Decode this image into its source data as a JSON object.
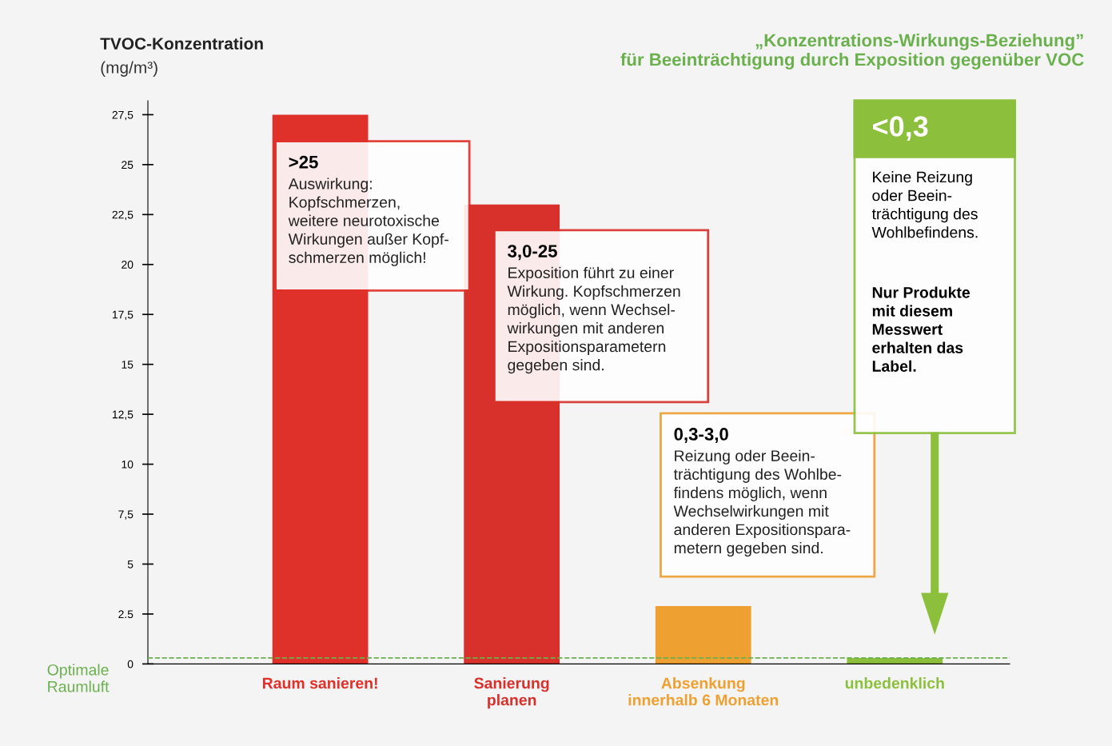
{
  "chart_data": {
    "type": "bar",
    "title": "„Konzentrations-Wirkungs-Beziehung”\nfür Beeinträchtigung durch Exposition gegenüber VOC",
    "ylabel": "TVOC-Konzentration\n(mg/m³)",
    "categories": [
      "Raum sanieren!",
      "Sanierung\nplanen",
      "Absenkung\ninnerhalb 6 Monaten",
      "unbedenklich"
    ],
    "values": [
      27.5,
      23.0,
      2.9,
      0.3
    ],
    "colors": [
      "#e0302a",
      "#d8302a",
      "#eea030",
      "#8cc03c"
    ],
    "ylim": [
      0,
      28.2
    ],
    "yticks": [
      0,
      {
        "value": 2.5,
        "label": "2.5"
      },
      5,
      {
        "value": 7.5,
        "label": "7,5"
      },
      10,
      {
        "value": 12.5,
        "label": "12,5"
      },
      15,
      {
        "value": 17.5,
        "label": "17,5"
      },
      20,
      {
        "value": 22.5,
        "label": "22,5"
      },
      25,
      {
        "value": 27.5,
        "label": "27,5"
      }
    ],
    "ref_lines": [
      {
        "axis": "y",
        "value": 0.3,
        "label": "Optimale\nRaumluft",
        "color": "#6ab04c",
        "line_style": "dashed"
      }
    ],
    "annotations": [
      ">25\nAuswirkung:\nKopfschmerzen,\nweitere neurotoxische\nWirkungen außer Kopf-\nschmerzen möglich!",
      "3,0-25\nExposition führt zu einer\nWirkung. Kopfschmerzen\nmöglich, wenn Wechsel-\nwirkungen mit anderen\nExpositionsparametern\ngegeben sind.",
      "0,3-3,0\nReizung oder Beein-\nträchtigung des Wohlbe-\nfindens möglich, wenn\nWechselwirkungen mit\nanderen Expositionspara-\nmetern gegeben sind.",
      "<0,3\nKeine Reizung\noder Beein-\nträchtigung des\nWohlbefindens.\n\nNur Produkte\nmit diesem\nMesswert\nerhalten das\nLabel."
    ],
    "grid": false,
    "legend": false
  }
}
